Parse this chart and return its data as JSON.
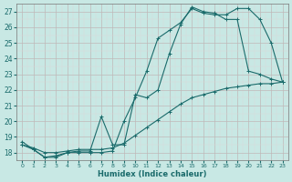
{
  "xlabel": "Humidex (Indice chaleur)",
  "xlim": [
    -0.5,
    23.5
  ],
  "ylim": [
    17.5,
    27.5
  ],
  "xticks": [
    0,
    1,
    2,
    3,
    4,
    5,
    6,
    7,
    8,
    9,
    10,
    11,
    12,
    13,
    14,
    15,
    16,
    17,
    18,
    19,
    20,
    21,
    22,
    23
  ],
  "yticks": [
    18,
    19,
    20,
    21,
    22,
    23,
    24,
    25,
    26,
    27
  ],
  "bg_color": "#c8e8e4",
  "line_color": "#1a6b6b",
  "grid_major_color": "#c0b8b8",
  "grid_minor_color": "#ddd8d8",
  "line1_x": [
    0,
    1,
    2,
    3,
    4,
    5,
    6,
    7,
    8,
    9,
    10,
    11,
    12,
    13,
    14,
    15,
    16,
    17,
    18,
    19,
    20,
    21,
    22,
    23
  ],
  "line1_y": [
    18.7,
    18.2,
    17.7,
    17.7,
    18.0,
    18.0,
    18.0,
    18.0,
    18.1,
    20.0,
    21.5,
    23.2,
    25.3,
    25.8,
    26.3,
    27.2,
    26.9,
    26.8,
    26.8,
    27.2,
    27.2,
    26.5,
    25.0,
    22.5
  ],
  "line2_x": [
    0,
    1,
    2,
    3,
    4,
    5,
    6,
    7,
    8,
    9,
    10,
    11,
    12,
    13,
    14,
    15,
    16,
    17,
    18,
    19,
    20,
    21,
    22,
    23
  ],
  "line2_y": [
    18.5,
    18.2,
    17.7,
    17.8,
    18.0,
    18.1,
    18.1,
    20.3,
    18.5,
    18.5,
    21.7,
    21.5,
    22.0,
    24.3,
    26.2,
    27.3,
    27.0,
    26.9,
    26.5,
    26.5,
    23.2,
    23.0,
    22.7,
    22.5
  ],
  "line3_x": [
    0,
    1,
    2,
    3,
    4,
    5,
    6,
    7,
    8,
    9,
    10,
    11,
    12,
    13,
    14,
    15,
    16,
    17,
    18,
    19,
    20,
    21,
    22,
    23
  ],
  "line3_y": [
    18.5,
    18.3,
    18.0,
    18.0,
    18.1,
    18.2,
    18.2,
    18.2,
    18.3,
    18.6,
    19.1,
    19.6,
    20.1,
    20.6,
    21.1,
    21.5,
    21.7,
    21.9,
    22.1,
    22.2,
    22.3,
    22.4,
    22.4,
    22.5
  ]
}
